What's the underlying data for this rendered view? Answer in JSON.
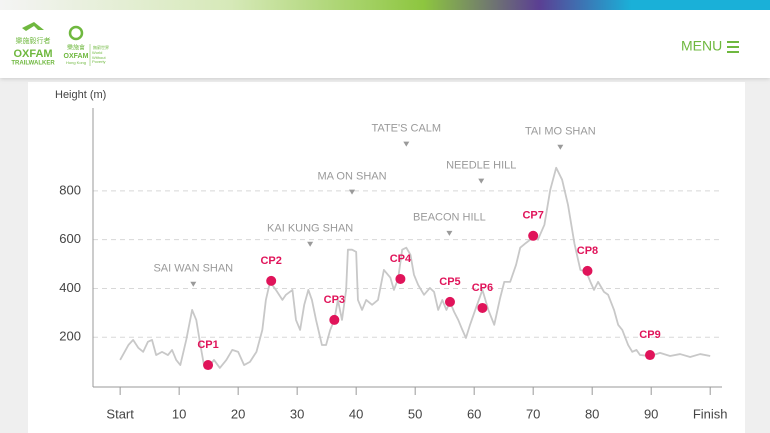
{
  "header": {
    "logo1": {
      "chinese": "樂施毅行者",
      "brand": "OXFAM",
      "sub": "TRAILWALKER"
    },
    "logo2": {
      "chinese": "樂施會",
      "brand": "OXFAM",
      "sub": "Hong Kong",
      "motto_chinese": "無窮世界",
      "motto": "World Without Poverty"
    },
    "menu": "MENU"
  },
  "chart_data": {
    "type": "line",
    "y_label": "Height (m)",
    "color": "#c8c8c8",
    "xlim": [
      -4.6,
      102
    ],
    "xticks": [
      {
        "value": 0,
        "label": "Start"
      },
      10,
      20,
      30,
      40,
      50,
      60,
      70,
      80,
      90,
      {
        "value": 100,
        "label": "Finish"
      }
    ],
    "ylim": [
      0,
      1140
    ],
    "yticks": [
      200,
      400,
      600,
      800
    ],
    "grid": true,
    "x": [
      0,
      1.4,
      2.2,
      3.1,
      3.9,
      4.7,
      5.4,
      6.1,
      7.1,
      8.1,
      8.8,
      9.5,
      10.2,
      11.2,
      12.2,
      12.9,
      13.6,
      14.2,
      14.9,
      15.9,
      16.9,
      18.0,
      19.0,
      20.0,
      21.0,
      22.0,
      23.1,
      24.1,
      24.7,
      25.4,
      26.4,
      27.5,
      28.1,
      29.2,
      29.8,
      30.5,
      31.2,
      31.9,
      32.5,
      33.2,
      34.2,
      34.9,
      35.6,
      36.3,
      36.9,
      37.6,
      38.3,
      38.6,
      39.3,
      40.0,
      40.3,
      41.0,
      41.7,
      42.7,
      43.7,
      44.7,
      45.8,
      46.4,
      47.1,
      47.8,
      48.5,
      49.2,
      49.8,
      50.5,
      51.5,
      52.5,
      53.2,
      53.9,
      54.6,
      55.3,
      55.9,
      56.6,
      57.3,
      58.0,
      58.6,
      59.3,
      60.3,
      61.4,
      62.4,
      63.4,
      64.4,
      65.1,
      66.1,
      67.1,
      67.8,
      68.8,
      69.5,
      70.2,
      70.8,
      71.9,
      72.9,
      73.9,
      74.9,
      75.9,
      77.0,
      78.0,
      79.0,
      79.7,
      80.3,
      81.0,
      82.0,
      82.7,
      83.7,
      84.4,
      85.1,
      86.1,
      86.8,
      87.5,
      88.1,
      89.8,
      91.5,
      93.2,
      94.9,
      96.6,
      98.3,
      100
    ],
    "values": [
      107,
      168,
      189,
      156,
      140,
      181,
      189,
      127,
      140,
      127,
      148,
      107,
      86,
      189,
      312,
      271,
      168,
      86,
      74,
      107,
      74,
      107,
      148,
      140,
      86,
      99,
      140,
      230,
      353,
      427,
      394,
      353,
      374,
      394,
      271,
      230,
      333,
      394,
      353,
      271,
      168,
      168,
      230,
      271,
      353,
      271,
      394,
      559,
      559,
      550,
      353,
      312,
      353,
      333,
      353,
      476,
      444,
      394,
      439,
      559,
      567,
      538,
      456,
      415,
      374,
      402,
      386,
      312,
      353,
      312,
      345,
      304,
      271,
      230,
      197,
      251,
      320,
      394,
      312,
      251,
      361,
      427,
      427,
      497,
      567,
      587,
      600,
      616,
      600,
      661,
      805,
      895,
      846,
      743,
      583,
      476,
      468,
      427,
      394,
      427,
      386,
      374,
      312,
      251,
      230,
      168,
      140,
      148,
      127,
      123,
      136,
      123,
      131,
      119,
      131,
      123
    ],
    "checkpoints": {
      "color": "#e0145a",
      "labels": [
        "CP1",
        "CP2",
        "CP3",
        "CP4",
        "CP5",
        "CP6",
        "CP7",
        "CP8",
        "CP9"
      ],
      "x": [
        14.9,
        25.6,
        36.3,
        47.5,
        55.9,
        61.4,
        70.0,
        79.2,
        89.8
      ],
      "values": [
        86,
        431,
        271,
        439,
        345,
        320,
        616,
        472,
        127
      ]
    },
    "peaks": [
      {
        "label": "SAI WAN SHAN",
        "x": 12.4,
        "y": 415
      },
      {
        "label": "KAI KUNG SHAN",
        "x": 32.2,
        "y": 579
      },
      {
        "label": "MA ON SHAN",
        "x": 39.3,
        "y": 793
      },
      {
        "label": "TATE'S CALM",
        "x": 48.5,
        "y": 990
      },
      {
        "label": "BEACON HILL",
        "x": 55.8,
        "y": 624
      },
      {
        "label": "NEEDLE HILL",
        "x": 61.2,
        "y": 838
      },
      {
        "label": "TAI MO SHAN",
        "x": 74.6,
        "y": 977
      }
    ]
  }
}
